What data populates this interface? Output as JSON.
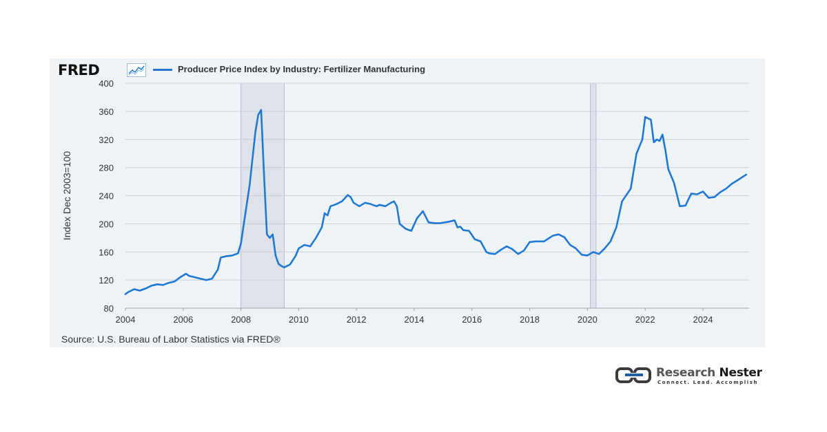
{
  "header": {
    "logo_text": "FRED",
    "legend_label": "Producer Price Index by Industry: Fertilizer Manufacturing"
  },
  "footer": {
    "source": "Source: U.S. Bureau of Labor Statistics via FRED®"
  },
  "brand": {
    "name_part1": "Research",
    "name_part2": "Nester",
    "tagline": "Connect. Lead. Accomplish"
  },
  "colors": {
    "line": "#1f78d1",
    "recession": "#dfe2e8",
    "panel": "#eef3f8",
    "brand_accent": "#1b5fa8"
  },
  "chart_data": {
    "type": "line",
    "title": "",
    "xlabel": "",
    "ylabel": "Index Dec 2003=100",
    "xlim": [
      2004,
      2025.6
    ],
    "ylim": [
      80,
      400
    ],
    "yticks": [
      80,
      120,
      160,
      200,
      240,
      280,
      320,
      360,
      400
    ],
    "xticks": [
      2004,
      2006,
      2008,
      2010,
      2012,
      2014,
      2016,
      2018,
      2020,
      2022,
      2024
    ],
    "grid": true,
    "recessions": [
      [
        2008.0,
        2009.5
      ],
      [
        2020.1,
        2020.3
      ]
    ],
    "series": [
      {
        "name": "Producer Price Index by Industry: Fertilizer Manufacturing",
        "x": [
          2004.0,
          2004.1,
          2004.3,
          2004.5,
          2004.7,
          2004.9,
          2005.1,
          2005.3,
          2005.5,
          2005.7,
          2005.9,
          2006.1,
          2006.2,
          2006.4,
          2006.6,
          2006.8,
          2007.0,
          2007.2,
          2007.3,
          2007.5,
          2007.7,
          2007.9,
          2008.0,
          2008.1,
          2008.3,
          2008.5,
          2008.6,
          2008.7,
          2008.8,
          2008.9,
          2009.0,
          2009.1,
          2009.2,
          2009.3,
          2009.4,
          2009.5,
          2009.7,
          2009.9,
          2010.0,
          2010.2,
          2010.4,
          2010.6,
          2010.8,
          2010.9,
          2011.0,
          2011.1,
          2011.3,
          2011.5,
          2011.7,
          2011.8,
          2011.9,
          2012.1,
          2012.3,
          2012.5,
          2012.7,
          2012.8,
          2013.0,
          2013.2,
          2013.3,
          2013.4,
          2013.5,
          2013.7,
          2013.9,
          2014.1,
          2014.3,
          2014.5,
          2014.7,
          2014.9,
          2015.2,
          2015.4,
          2015.5,
          2015.6,
          2015.7,
          2015.9,
          2016.1,
          2016.3,
          2016.5,
          2016.6,
          2016.8,
          2017.0,
          2017.2,
          2017.4,
          2017.6,
          2017.8,
          2018.0,
          2018.2,
          2018.5,
          2018.8,
          2019.0,
          2019.2,
          2019.4,
          2019.6,
          2019.8,
          2020.0,
          2020.2,
          2020.4,
          2020.6,
          2020.8,
          2021.0,
          2021.2,
          2021.5,
          2021.7,
          2021.9,
          2022.0,
          2022.2,
          2022.3,
          2022.4,
          2022.5,
          2022.6,
          2022.7,
          2022.8,
          2023.0,
          2023.2,
          2023.4,
          2023.5,
          2023.6,
          2023.8,
          2024.0,
          2024.2,
          2024.4,
          2024.6,
          2024.8,
          2025.0,
          2025.2,
          2025.5
        ],
        "values": [
          100,
          103,
          107,
          105,
          108,
          112,
          114,
          113,
          116,
          118,
          124,
          129,
          126,
          124,
          122,
          120,
          122,
          135,
          152,
          154,
          155,
          158,
          172,
          200,
          255,
          330,
          355,
          362,
          270,
          185,
          180,
          185,
          155,
          143,
          140,
          138,
          142,
          155,
          165,
          170,
          168,
          180,
          195,
          215,
          212,
          225,
          228,
          232,
          241,
          238,
          230,
          225,
          230,
          228,
          225,
          227,
          225,
          230,
          232,
          225,
          200,
          193,
          190,
          208,
          218,
          202,
          201,
          201,
          203,
          205,
          195,
          196,
          191,
          190,
          178,
          175,
          160,
          158,
          157,
          163,
          168,
          164,
          157,
          162,
          174,
          175,
          175,
          183,
          185,
          181,
          170,
          165,
          156,
          155,
          160,
          157,
          165,
          175,
          195,
          232,
          250,
          300,
          320,
          352,
          348,
          316,
          320,
          318,
          327,
          305,
          278,
          258,
          225,
          226,
          235,
          243,
          242,
          246,
          237,
          238,
          245,
          250,
          257,
          262,
          270
        ]
      }
    ],
    "source": "U.S. Bureau of Labor Statistics via FRED®"
  }
}
